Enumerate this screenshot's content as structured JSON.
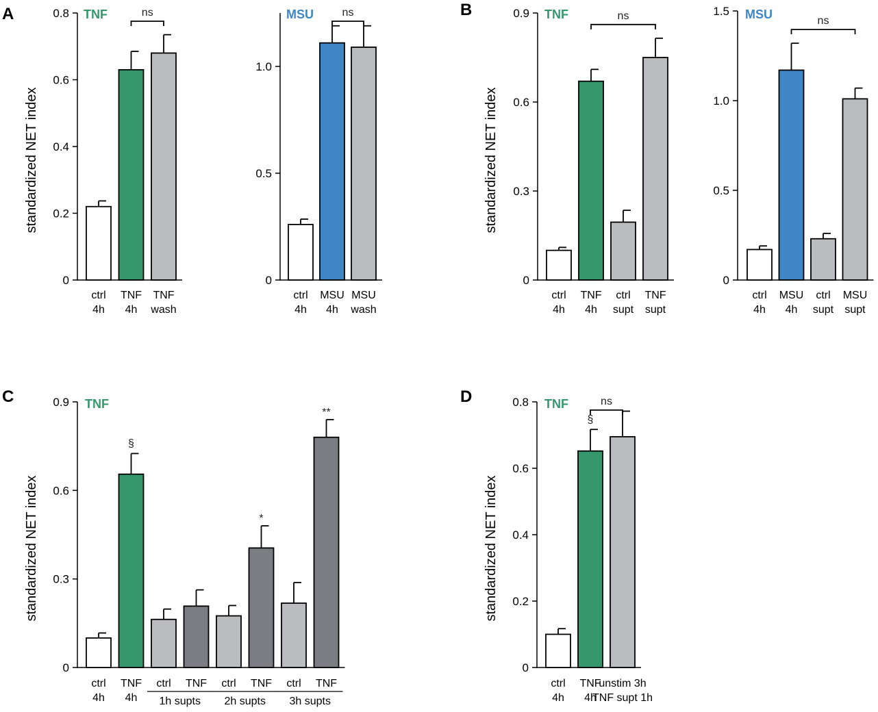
{
  "colors": {
    "green": "#35976B",
    "blue": "#3F86C6",
    "light_gray": "#BBBCC0",
    "dark_gray": "#7C7D82",
    "white": "#FFFFFF",
    "axis": "#000000"
  },
  "chart_data": [
    {
      "id": "A1",
      "panel": "A",
      "type": "bar",
      "tag": "TNF",
      "tag_color": "green",
      "ylabel": "standardized NET index",
      "ylim": [
        0,
        0.8
      ],
      "yticks": [
        0,
        0.2,
        0.4,
        0.6,
        0.8
      ],
      "ytick_labels": [
        "0",
        "0.2",
        "0.4",
        "0.6",
        "0.8"
      ],
      "categories": [
        {
          "lines": [
            "ctrl",
            "4h"
          ],
          "value": 0.22,
          "error": 0.017,
          "fill": "white"
        },
        {
          "lines": [
            "TNF",
            "4h"
          ],
          "value": 0.63,
          "error": 0.055,
          "fill": "green"
        },
        {
          "lines": [
            "TNF",
            "wash"
          ],
          "value": 0.68,
          "error": 0.055,
          "fill": "light_gray"
        }
      ],
      "brackets": [
        {
          "from": 1,
          "to": 2,
          "label": "ns"
        }
      ]
    },
    {
      "id": "A2",
      "panel": "",
      "type": "bar",
      "tag": "MSU",
      "tag_color": "blue",
      "ylabel": "",
      "ylim": [
        0,
        1.25
      ],
      "yticks": [
        0,
        0.5,
        1.0
      ],
      "ytick_labels": [
        "0",
        "0.5",
        "1.0"
      ],
      "categories": [
        {
          "lines": [
            "ctrl",
            "4h"
          ],
          "value": 0.26,
          "error": 0.025,
          "fill": "white"
        },
        {
          "lines": [
            "MSU",
            "4h"
          ],
          "value": 1.11,
          "error": 0.08,
          "fill": "blue"
        },
        {
          "lines": [
            "MSU",
            "wash"
          ],
          "value": 1.09,
          "error": 0.1,
          "fill": "light_gray"
        }
      ],
      "brackets": [
        {
          "from": 1,
          "to": 2,
          "label": "ns"
        }
      ]
    },
    {
      "id": "B1",
      "panel": "B",
      "type": "bar",
      "tag": "TNF",
      "tag_color": "green",
      "ylabel": "standardized NET index",
      "ylim": [
        0,
        0.9
      ],
      "yticks": [
        0,
        0.3,
        0.6,
        0.9
      ],
      "ytick_labels": [
        "0",
        "0.3",
        "0.6",
        "0.9"
      ],
      "categories": [
        {
          "lines": [
            "ctrl",
            "4h"
          ],
          "value": 0.1,
          "error": 0.01,
          "fill": "white"
        },
        {
          "lines": [
            "TNF",
            "4h"
          ],
          "value": 0.67,
          "error": 0.04,
          "fill": "green"
        },
        {
          "lines": [
            "ctrl",
            "supt"
          ],
          "value": 0.195,
          "error": 0.04,
          "fill": "light_gray"
        },
        {
          "lines": [
            "TNF",
            "supt"
          ],
          "value": 0.75,
          "error": 0.065,
          "fill": "light_gray"
        }
      ],
      "brackets": [
        {
          "from": 1,
          "to": 3,
          "label": "ns"
        }
      ]
    },
    {
      "id": "B2",
      "panel": "",
      "type": "bar",
      "tag": "MSU",
      "tag_color": "blue",
      "ylabel": "",
      "ylim": [
        0,
        1.5
      ],
      "yticks": [
        0,
        0.5,
        1.0,
        1.5
      ],
      "ytick_labels": [
        "0",
        "0.5",
        "1.0",
        "1.5"
      ],
      "categories": [
        {
          "lines": [
            "ctrl",
            "4h"
          ],
          "value": 0.17,
          "error": 0.02,
          "fill": "white"
        },
        {
          "lines": [
            "MSU",
            "4h"
          ],
          "value": 1.17,
          "error": 0.15,
          "fill": "blue"
        },
        {
          "lines": [
            "ctrl",
            "supt"
          ],
          "value": 0.23,
          "error": 0.03,
          "fill": "light_gray"
        },
        {
          "lines": [
            "MSU",
            "supt"
          ],
          "value": 1.01,
          "error": 0.06,
          "fill": "light_gray"
        }
      ],
      "brackets": [
        {
          "from": 1,
          "to": 3,
          "label": "ns"
        }
      ]
    },
    {
      "id": "C",
      "panel": "C",
      "type": "bar",
      "tag": "TNF",
      "tag_color": "green",
      "ylabel": "standardized NET index",
      "ylim": [
        0,
        0.9
      ],
      "yticks": [
        0,
        0.3,
        0.6,
        0.9
      ],
      "ytick_labels": [
        "0",
        "0.3",
        "0.6",
        "0.9"
      ],
      "categories": [
        {
          "lines": [
            "ctrl",
            "4h"
          ],
          "value": 0.1,
          "error": 0.017,
          "fill": "white"
        },
        {
          "lines": [
            "TNF",
            "4h"
          ],
          "value": 0.655,
          "error": 0.07,
          "fill": "green",
          "sig": "§"
        },
        {
          "lines": [
            "ctrl"
          ],
          "value": 0.163,
          "error": 0.035,
          "fill": "light_gray"
        },
        {
          "lines": [
            "TNF"
          ],
          "value": 0.208,
          "error": 0.055,
          "fill": "dark_gray"
        },
        {
          "lines": [
            "ctrl"
          ],
          "value": 0.175,
          "error": 0.035,
          "fill": "light_gray"
        },
        {
          "lines": [
            "TNF"
          ],
          "value": 0.405,
          "error": 0.075,
          "fill": "dark_gray",
          "sig": "*"
        },
        {
          "lines": [
            "ctrl"
          ],
          "value": 0.218,
          "error": 0.07,
          "fill": "light_gray"
        },
        {
          "lines": [
            "TNF"
          ],
          "value": 0.78,
          "error": 0.06,
          "fill": "dark_gray",
          "sig": "**"
        }
      ],
      "groups": [
        {
          "from": 2,
          "to": 3,
          "label": "1h supts"
        },
        {
          "from": 4,
          "to": 5,
          "label": "2h supts"
        },
        {
          "from": 6,
          "to": 7,
          "label": "3h supts"
        }
      ],
      "brackets": []
    },
    {
      "id": "D",
      "panel": "D",
      "type": "bar",
      "tag": "TNF",
      "tag_color": "green",
      "ylabel": "standardized NET index",
      "ylim": [
        0,
        0.8
      ],
      "yticks": [
        0,
        0.2,
        0.4,
        0.6,
        0.8
      ],
      "ytick_labels": [
        "0",
        "0.2",
        "0.4",
        "0.6",
        "0.8"
      ],
      "categories": [
        {
          "lines": [
            "ctrl",
            "4h"
          ],
          "value": 0.1,
          "error": 0.017,
          "fill": "white"
        },
        {
          "lines": [
            "TNF",
            "4h"
          ],
          "value": 0.652,
          "error": 0.065,
          "fill": "green",
          "sig": "§"
        },
        {
          "lines": [
            "unstim 3h",
            "TNF supt 1h"
          ],
          "value": 0.695,
          "error": 0.077,
          "fill": "light_gray"
        }
      ],
      "brackets": [
        {
          "from": 1,
          "to": 2,
          "label": "ns"
        }
      ]
    }
  ]
}
